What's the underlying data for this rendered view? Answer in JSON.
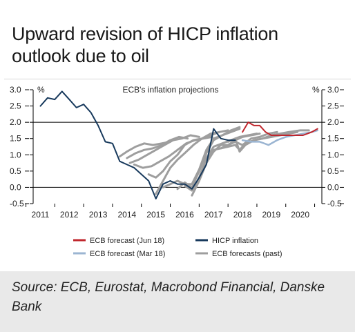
{
  "title": {
    "line1": "Upward revision of HICP inflation",
    "line2": "outlook due to oil"
  },
  "source": "Source: ECB, Eurostat, Macrobond Financial, Danske Bank",
  "chart_data": {
    "type": "line",
    "subtitle": "ECB's inflation projections",
    "left_unit": "%",
    "right_unit": "%",
    "ylim": [
      -0.5,
      3.0
    ],
    "yticks": [
      3.0,
      2.5,
      2.0,
      1.5,
      1.0,
      0.5,
      0.0,
      -0.5
    ],
    "ytick_labels": [
      "3.0",
      "2.5",
      "2.0",
      "1.5",
      "1.0",
      "0.5",
      "0.0",
      "-0.5"
    ],
    "xlim": [
      2010.75,
      2020.75
    ],
    "xticks": [
      "2011",
      "2012",
      "2013",
      "2014",
      "2015",
      "2016",
      "2017",
      "2018",
      "2019",
      "2020"
    ],
    "reference_line": 2.0,
    "grid": false,
    "legend_position": "bottom",
    "colors": {
      "hicp": "#17395c",
      "jun18": "#c0272d",
      "mar18": "#9bb5d2",
      "past": "#9e9e9e"
    },
    "legend": [
      {
        "label": "ECB forecast (Jun 18)",
        "color": "#c0272d"
      },
      {
        "label": "HICP inflation",
        "color": "#17395c"
      },
      {
        "label": "ECB forecast (Mar 18)",
        "color": "#9bb5d2"
      },
      {
        "label": "ECB forecasts (past)",
        "color": "#9e9e9e"
      }
    ],
    "series": [
      {
        "name": "HICP inflation",
        "key": "hicp",
        "points": [
          [
            2011.0,
            2.5
          ],
          [
            2011.25,
            2.75
          ],
          [
            2011.5,
            2.7
          ],
          [
            2011.75,
            2.95
          ],
          [
            2012.0,
            2.7
          ],
          [
            2012.25,
            2.45
          ],
          [
            2012.5,
            2.55
          ],
          [
            2012.75,
            2.3
          ],
          [
            2013.0,
            1.9
          ],
          [
            2013.25,
            1.4
          ],
          [
            2013.5,
            1.35
          ],
          [
            2013.75,
            0.8
          ],
          [
            2014.0,
            0.7
          ],
          [
            2014.25,
            0.6
          ],
          [
            2014.5,
            0.4
          ],
          [
            2014.75,
            0.2
          ],
          [
            2015.0,
            -0.35
          ],
          [
            2015.25,
            0.1
          ],
          [
            2015.5,
            0.2
          ],
          [
            2015.75,
            0.1
          ],
          [
            2016.0,
            0.1
          ],
          [
            2016.25,
            -0.05
          ],
          [
            2016.5,
            0.3
          ],
          [
            2016.75,
            0.7
          ],
          [
            2017.0,
            1.8
          ],
          [
            2017.25,
            1.5
          ],
          [
            2017.5,
            1.45
          ],
          [
            2017.75,
            1.45
          ]
        ]
      },
      {
        "name": "ECB forecast (Jun 18)",
        "key": "jun18",
        "points": [
          [
            2018.0,
            1.7
          ],
          [
            2018.2,
            2.0
          ],
          [
            2018.4,
            1.9
          ],
          [
            2018.6,
            1.9
          ],
          [
            2018.8,
            1.7
          ],
          [
            2019.0,
            1.6
          ],
          [
            2019.4,
            1.6
          ],
          [
            2019.8,
            1.6
          ],
          [
            2020.1,
            1.6
          ],
          [
            2020.4,
            1.7
          ],
          [
            2020.6,
            1.8
          ]
        ]
      },
      {
        "name": "ECB forecast (Mar 18)",
        "key": "mar18",
        "points": [
          [
            2018.0,
            1.45
          ],
          [
            2018.3,
            1.4
          ],
          [
            2018.6,
            1.4
          ],
          [
            2018.9,
            1.3
          ],
          [
            2019.2,
            1.45
          ],
          [
            2019.5,
            1.55
          ],
          [
            2019.8,
            1.6
          ],
          [
            2020.1,
            1.65
          ],
          [
            2020.4,
            1.7
          ],
          [
            2020.6,
            1.75
          ]
        ]
      },
      {
        "name": "ECB forecasts (past)",
        "key": "past",
        "points": [
          [
            2013.75,
            0.95
          ],
          [
            2014.0,
            1.1
          ],
          [
            2014.3,
            1.25
          ],
          [
            2014.6,
            1.35
          ],
          [
            2014.9,
            1.3
          ],
          [
            2015.2,
            1.35
          ],
          [
            2015.5,
            1.4
          ]
        ]
      },
      {
        "name": "ECB forecasts (past)",
        "key": "past",
        "points": [
          [
            2014.0,
            0.9
          ],
          [
            2014.3,
            1.05
          ],
          [
            2014.6,
            1.15
          ],
          [
            2014.9,
            1.2
          ],
          [
            2015.2,
            1.3
          ],
          [
            2015.5,
            1.45
          ],
          [
            2015.8,
            1.55
          ],
          [
            2016.1,
            1.5
          ]
        ]
      },
      {
        "name": "ECB forecasts (past)",
        "key": "past",
        "points": [
          [
            2014.1,
            0.75
          ],
          [
            2014.4,
            0.85
          ],
          [
            2014.7,
            1.0
          ],
          [
            2015.0,
            1.15
          ],
          [
            2015.3,
            1.3
          ],
          [
            2015.6,
            1.45
          ],
          [
            2015.9,
            1.5
          ],
          [
            2016.2,
            1.6
          ],
          [
            2016.5,
            1.55
          ]
        ]
      },
      {
        "name": "ECB forecasts (past)",
        "key": "past",
        "points": [
          [
            2014.25,
            0.7
          ],
          [
            2014.55,
            0.6
          ],
          [
            2014.85,
            0.65
          ],
          [
            2015.15,
            0.8
          ],
          [
            2015.45,
            0.95
          ],
          [
            2015.75,
            1.15
          ],
          [
            2016.05,
            1.35
          ],
          [
            2016.35,
            1.45
          ],
          [
            2016.65,
            1.5
          ],
          [
            2016.95,
            1.55
          ]
        ]
      },
      {
        "name": "ECB forecasts (past)",
        "key": "past",
        "points": [
          [
            2014.75,
            0.4
          ],
          [
            2015.0,
            0.3
          ],
          [
            2015.25,
            0.5
          ],
          [
            2015.5,
            0.8
          ],
          [
            2015.75,
            1.0
          ],
          [
            2016.0,
            1.3
          ],
          [
            2016.3,
            1.45
          ],
          [
            2016.6,
            1.5
          ],
          [
            2016.9,
            1.65
          ],
          [
            2017.2,
            1.7
          ]
        ]
      },
      {
        "name": "ECB forecasts (past)",
        "key": "past",
        "points": [
          [
            2015.0,
            -0.2
          ],
          [
            2015.25,
            0.2
          ],
          [
            2015.5,
            0.6
          ],
          [
            2015.75,
            0.85
          ],
          [
            2016.0,
            1.05
          ],
          [
            2016.3,
            1.3
          ],
          [
            2016.6,
            1.5
          ],
          [
            2016.9,
            1.6
          ],
          [
            2017.2,
            1.7
          ],
          [
            2017.5,
            1.75
          ]
        ]
      },
      {
        "name": "ECB forecasts (past)",
        "key": "past",
        "points": [
          [
            2015.25,
            0.0
          ],
          [
            2015.5,
            0.1
          ],
          [
            2015.75,
            0.2
          ],
          [
            2016.0,
            0.1
          ],
          [
            2016.25,
            0.1
          ],
          [
            2016.5,
            0.55
          ],
          [
            2016.75,
            1.15
          ],
          [
            2017.0,
            1.5
          ],
          [
            2017.3,
            1.6
          ],
          [
            2017.6,
            1.7
          ],
          [
            2017.9,
            1.8
          ]
        ]
      },
      {
        "name": "ECB forecasts (past)",
        "key": "past",
        "points": [
          [
            2015.75,
            -0.05
          ],
          [
            2016.0,
            0.15
          ],
          [
            2016.25,
            0.0
          ],
          [
            2016.5,
            0.5
          ],
          [
            2016.75,
            1.05
          ],
          [
            2017.0,
            1.45
          ],
          [
            2017.3,
            1.6
          ],
          [
            2017.6,
            1.75
          ],
          [
            2017.9,
            1.85
          ]
        ]
      },
      {
        "name": "ECB forecasts (past)",
        "key": "past",
        "points": [
          [
            2016.0,
            0.05
          ],
          [
            2016.25,
            -0.1
          ],
          [
            2016.5,
            0.3
          ],
          [
            2016.75,
            0.9
          ],
          [
            2017.0,
            1.25
          ],
          [
            2017.3,
            1.35
          ],
          [
            2017.6,
            1.45
          ],
          [
            2017.9,
            1.55
          ],
          [
            2018.2,
            1.6
          ],
          [
            2018.5,
            1.65
          ]
        ]
      },
      {
        "name": "ECB forecasts (past)",
        "key": "past",
        "points": [
          [
            2016.25,
            -0.25
          ],
          [
            2016.5,
            0.2
          ],
          [
            2016.75,
            0.75
          ],
          [
            2017.0,
            1.1
          ],
          [
            2017.25,
            1.3
          ],
          [
            2017.5,
            1.3
          ],
          [
            2017.75,
            1.45
          ],
          [
            2018.0,
            1.55
          ],
          [
            2018.3,
            1.6
          ],
          [
            2018.6,
            1.65
          ]
        ]
      },
      {
        "name": "ECB forecasts (past)",
        "key": "past",
        "points": [
          [
            2016.75,
            0.85
          ],
          [
            2017.0,
            1.15
          ],
          [
            2017.25,
            1.2
          ],
          [
            2017.5,
            1.3
          ],
          [
            2017.75,
            1.4
          ],
          [
            2018.0,
            1.3
          ],
          [
            2018.3,
            1.5
          ],
          [
            2018.6,
            1.55
          ],
          [
            2018.9,
            1.65
          ],
          [
            2019.2,
            1.7
          ]
        ]
      },
      {
        "name": "ECB forecasts (past)",
        "key": "past",
        "points": [
          [
            2017.25,
            1.2
          ],
          [
            2017.5,
            1.25
          ],
          [
            2017.75,
            1.3
          ],
          [
            2017.9,
            1.15
          ],
          [
            2018.1,
            1.35
          ],
          [
            2018.4,
            1.45
          ],
          [
            2018.7,
            1.5
          ],
          [
            2019.0,
            1.55
          ],
          [
            2019.3,
            1.6
          ],
          [
            2019.6,
            1.65
          ],
          [
            2019.9,
            1.7
          ]
        ]
      },
      {
        "name": "ECB forecasts (past)",
        "key": "past",
        "points": [
          [
            2017.5,
            1.4
          ],
          [
            2017.75,
            1.5
          ],
          [
            2017.9,
            1.1
          ],
          [
            2018.1,
            1.3
          ],
          [
            2018.4,
            1.45
          ],
          [
            2018.7,
            1.5
          ],
          [
            2019.0,
            1.6
          ],
          [
            2019.3,
            1.65
          ],
          [
            2019.6,
            1.7
          ],
          [
            2020.0,
            1.75
          ],
          [
            2020.3,
            1.75
          ]
        ]
      }
    ]
  }
}
